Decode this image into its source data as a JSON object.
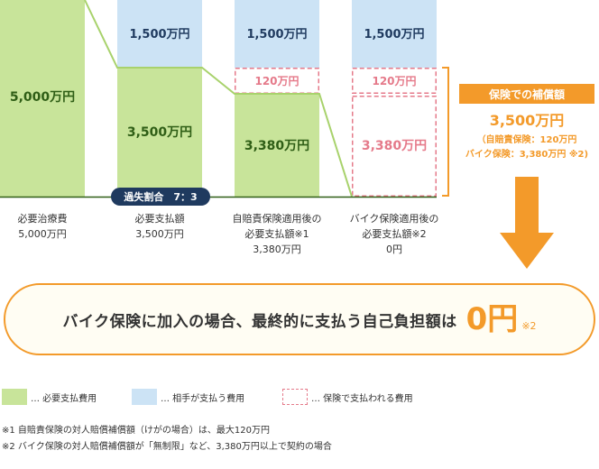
{
  "columns": [
    {
      "green_label": "5,000万円",
      "caption": [
        "必要治療費",
        "5,000万円"
      ]
    },
    {
      "blue_label": "1,500万円",
      "green_label": "3,500万円",
      "caption": [
        "必要支払額",
        "3,500万円"
      ]
    },
    {
      "blue_label": "1,500万円",
      "dashed_label": "120万円",
      "green_label": "3,380万円",
      "caption": [
        "自賠責保険適用後の",
        "必要支払額※1",
        "3,380万円"
      ]
    },
    {
      "blue_label": "1,500万円",
      "dashed_label": "120万円",
      "dashed_large_label": "3,380万円",
      "caption": [
        "バイク保険適用後の",
        "必要支払額※2",
        "0円"
      ]
    }
  ],
  "fault_ratio": "過失割合　7：3",
  "compensation": {
    "title": "保険での補償額",
    "amount": "3,500万円",
    "detail_1": "（自賠責保険：120万円",
    "detail_2": "バイク保険：3,380万円 ※2)"
  },
  "banner": {
    "message": "バイク保険に加入の場合、最終的に支払う自己負担額は",
    "amount": "0円",
    "note": "※2"
  },
  "legend": [
    {
      "label": "… 必要支払費用"
    },
    {
      "label": "… 相手が支払う費用"
    },
    {
      "label": "… 保険で支払われる費用"
    }
  ],
  "footnotes": [
    "※1  自賠責保険の対人賠償補償額（けがの場合）は、最大120万円",
    "※2  バイク保険の対人賠償補償額が「無制限」など、3,380万円以上で契約の場合"
  ],
  "colors": {
    "green": "#c8e49a",
    "green_line": "#a8d26c",
    "blue": "#cce3f5",
    "pink": "#e57a8a",
    "orange": "#f39a2a",
    "navy": "#1f3a5f",
    "green_text": "#2f5e16"
  }
}
